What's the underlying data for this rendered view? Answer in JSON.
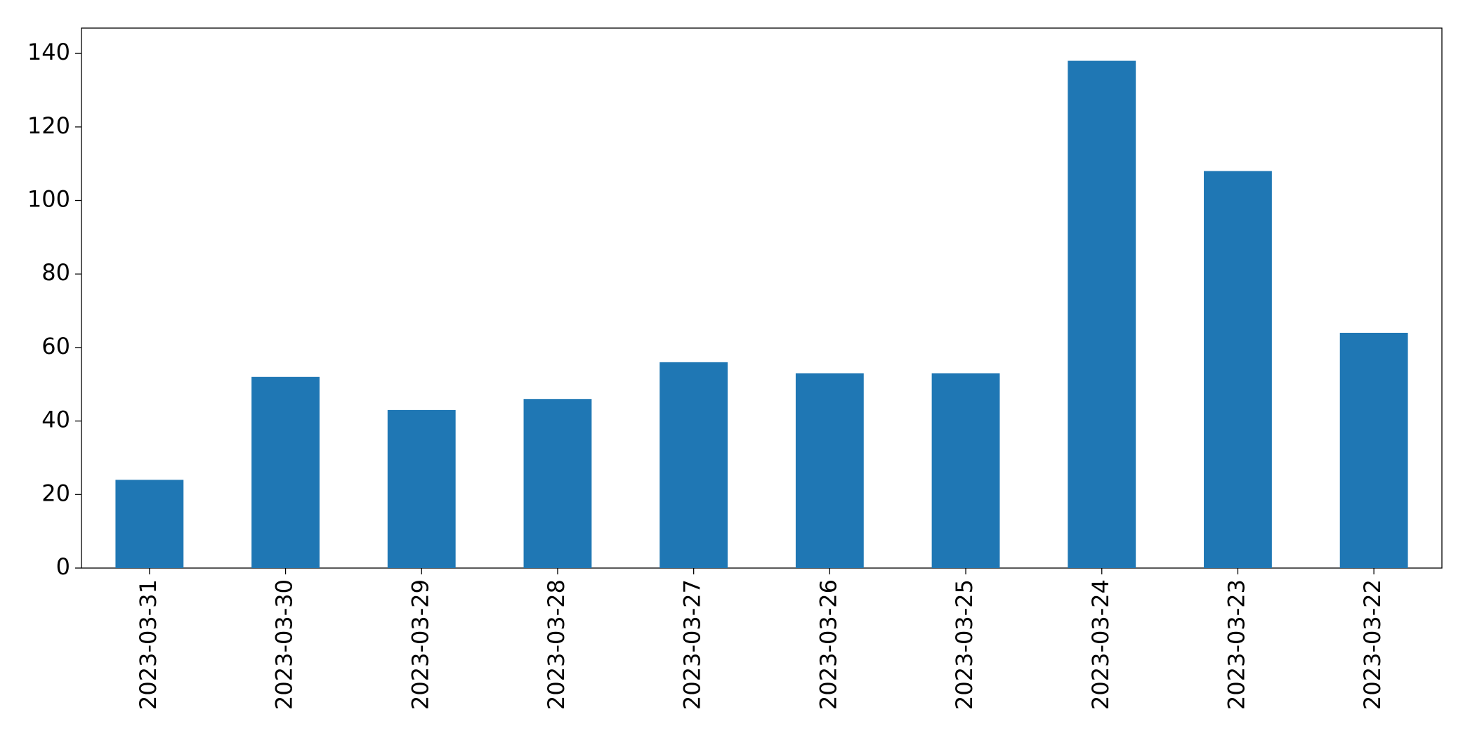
{
  "chart_data": {
    "type": "bar",
    "categories": [
      "2023-03-31",
      "2023-03-30",
      "2023-03-29",
      "2023-03-28",
      "2023-03-27",
      "2023-03-26",
      "2023-03-25",
      "2023-03-24",
      "2023-03-23",
      "2023-03-22"
    ],
    "values": [
      24,
      52,
      43,
      46,
      56,
      53,
      53,
      138,
      108,
      64
    ],
    "color": "#1f77b4",
    "ylim": [
      0,
      146.9
    ],
    "yticks": [
      0,
      20,
      40,
      60,
      80,
      100,
      120,
      140
    ],
    "grid": false
  }
}
